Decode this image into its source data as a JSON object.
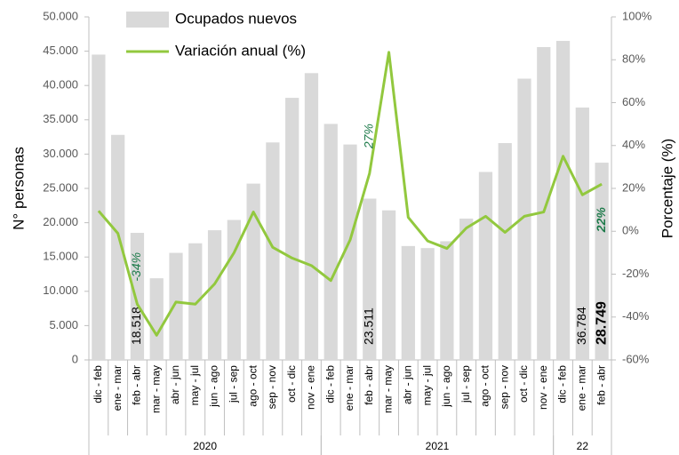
{
  "chart_data": {
    "type": "bar-line",
    "categories": [
      "dic - feb",
      "ene - mar",
      "feb - abr",
      "mar - may",
      "abr - jun",
      "may - jul",
      "jun - ago",
      "jul - sep",
      "ago - oct",
      "sep - nov",
      "oct - dic",
      "nov - ene",
      "dic - feb",
      "ene - mar",
      "feb - abr",
      "mar - may",
      "abr - jun",
      "may - jul",
      "jun - ago",
      "jul - sep",
      "ago - oct",
      "sep - nov",
      "oct - dic",
      "nov - ene",
      "dic - feb",
      "ene - mar",
      "feb - abr"
    ],
    "groups": [
      {
        "label": "2020",
        "count": 12
      },
      {
        "label": "2021",
        "count": 12
      },
      {
        "label": "22",
        "count": 3
      }
    ],
    "series": [
      {
        "name": "Ocupados nuevos",
        "type": "bar",
        "color": "#d9d9d9",
        "values": [
          44500,
          32800,
          18518,
          11900,
          15600,
          17000,
          18900,
          20400,
          25700,
          31700,
          38200,
          41800,
          34400,
          31400,
          23511,
          21800,
          16600,
          16300,
          17300,
          20600,
          27400,
          31600,
          41000,
          45600,
          46500,
          36784,
          28749
        ],
        "value_labels": [
          null,
          null,
          "18.518",
          null,
          null,
          null,
          null,
          null,
          null,
          null,
          null,
          null,
          null,
          null,
          "23.511",
          null,
          null,
          null,
          null,
          null,
          null,
          null,
          null,
          null,
          null,
          "36.784",
          "28.749"
        ]
      },
      {
        "name": "Variación anual (%)",
        "type": "line",
        "axis": "y2",
        "color": "#92c83e",
        "values": [
          9.5,
          -1,
          -34,
          -48.5,
          -33,
          -34,
          -24.5,
          -10,
          9,
          -7.5,
          -12.5,
          -16,
          -23,
          -4,
          27,
          83.5,
          6.5,
          -4.5,
          -8,
          1.5,
          7,
          -0.5,
          7,
          9,
          35,
          17,
          22
        ],
        "value_labels": [
          null,
          null,
          "-34%",
          null,
          null,
          null,
          null,
          null,
          null,
          null,
          null,
          null,
          null,
          null,
          "27%",
          null,
          null,
          null,
          null,
          null,
          null,
          null,
          null,
          null,
          null,
          null,
          "22%"
        ]
      }
    ],
    "ylabel": "N° personas",
    "y2label": "Porcentaje (%)",
    "ylim": [
      0,
      50000
    ],
    "yticks": [
      0,
      {
        "value": 5000,
        "label": "5.000"
      },
      {
        "value": 10000,
        "label": "10.000"
      },
      {
        "value": 15000,
        "label": "15.000"
      },
      {
        "value": 20000,
        "label": "20.000"
      },
      {
        "value": 25000,
        "label": "25.000"
      },
      {
        "value": 30000,
        "label": "30.000"
      },
      {
        "value": 35000,
        "label": "35.000"
      },
      {
        "value": 40000,
        "label": "40.000"
      },
      {
        "value": 45000,
        "label": "45.000"
      },
      {
        "value": 50000,
        "label": "50.000"
      }
    ],
    "y2lim": [
      -60,
      100
    ],
    "y2ticks": [
      {
        "value": -60,
        "label": "-60%"
      },
      {
        "value": -40,
        "label": "-40%"
      },
      {
        "value": -20,
        "label": "-20%"
      },
      {
        "value": 0,
        "label": "0%"
      },
      {
        "value": 20,
        "label": "20%"
      },
      {
        "value": 40,
        "label": "40%"
      },
      {
        "value": 60,
        "label": "60%"
      },
      {
        "value": 80,
        "label": "80%"
      },
      {
        "value": 100,
        "label": "100%"
      }
    ],
    "legend": "upper left",
    "grid": false
  }
}
